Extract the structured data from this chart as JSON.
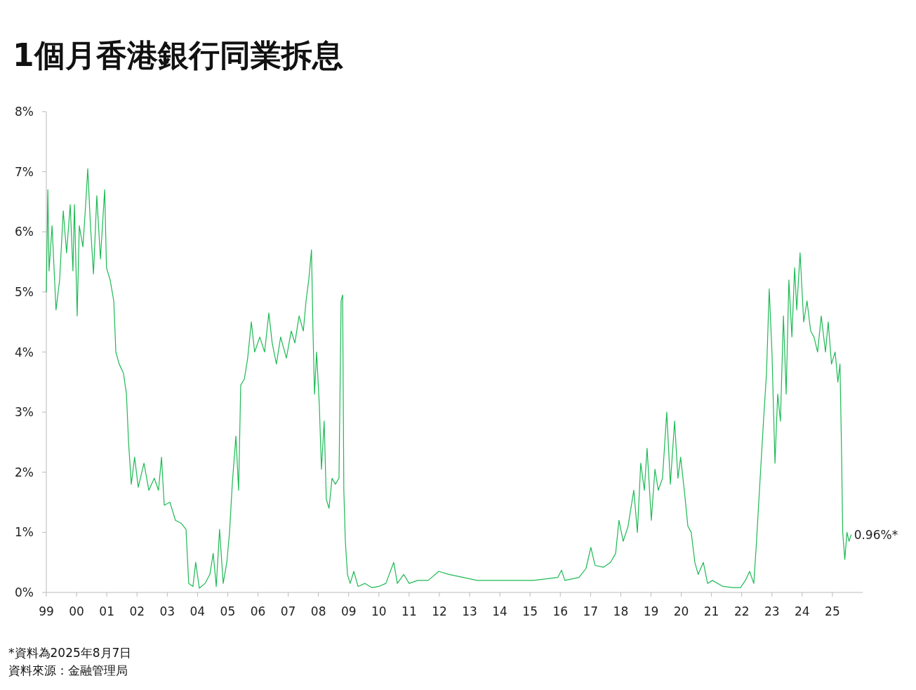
{
  "chart_data": {
    "type": "line",
    "title": "1個月香港銀行同業拆息",
    "x": [
      1999.0,
      1999.05,
      1999.09,
      1999.19,
      1999.32,
      1999.44,
      1999.56,
      1999.67,
      1999.79,
      1999.88,
      1999.93,
      2000.02,
      2000.09,
      2000.21,
      2000.3,
      2000.37,
      2000.46,
      2000.56,
      2000.67,
      2000.79,
      2000.93,
      2000.99,
      2001.11,
      2001.23,
      2001.3,
      2001.41,
      2001.55,
      2001.65,
      2001.72,
      2001.81,
      2001.92,
      2002.04,
      2002.23,
      2002.39,
      2002.57,
      2002.71,
      2002.81,
      2002.9,
      2003.09,
      2003.27,
      2003.46,
      2003.62,
      2003.71,
      2003.85,
      2003.94,
      2004.06,
      2004.25,
      2004.41,
      2004.52,
      2004.62,
      2004.73,
      2004.85,
      2004.97,
      2005.06,
      2005.15,
      2005.27,
      2005.36,
      2005.43,
      2005.55,
      2005.66,
      2005.78,
      2005.89,
      2006.06,
      2006.22,
      2006.36,
      2006.47,
      2006.61,
      2006.75,
      2006.94,
      2007.1,
      2007.22,
      2007.36,
      2007.5,
      2007.59,
      2007.68,
      2007.77,
      2007.82,
      2007.87,
      2007.94,
      2008.03,
      2008.1,
      2008.19,
      2008.26,
      2008.35,
      2008.45,
      2008.56,
      2008.68,
      2008.75,
      2008.8,
      2008.84,
      2008.89,
      2008.96,
      2009.05,
      2009.17,
      2009.31,
      2009.54,
      2009.77,
      2010.0,
      2010.23,
      2010.49,
      2010.61,
      2010.82,
      2011.0,
      2011.28,
      2011.63,
      2011.98,
      2012.32,
      2012.79,
      2013.25,
      2014.18,
      2015.11,
      2015.92,
      2016.04,
      2016.15,
      2016.62,
      2016.85,
      2017.01,
      2017.15,
      2017.43,
      2017.66,
      2017.83,
      2017.94,
      2018.08,
      2018.24,
      2018.43,
      2018.55,
      2018.66,
      2018.78,
      2018.87,
      2019.01,
      2019.13,
      2019.24,
      2019.38,
      2019.52,
      2019.64,
      2019.78,
      2019.89,
      2019.98,
      2020.1,
      2020.22,
      2020.33,
      2020.45,
      2020.56,
      2020.73,
      2020.87,
      2021.03,
      2021.38,
      2021.73,
      2021.96,
      2022.12,
      2022.26,
      2022.4,
      2022.49,
      2022.61,
      2022.72,
      2022.82,
      2022.91,
      2023.0,
      2023.1,
      2023.19,
      2023.28,
      2023.38,
      2023.47,
      2023.56,
      2023.66,
      2023.75,
      2023.82,
      2023.93,
      2024.05,
      2024.16,
      2024.28,
      2024.39,
      2024.51,
      2024.63,
      2024.77,
      2024.86,
      2024.97,
      2025.09,
      2025.18,
      2025.25,
      2025.3,
      2025.34,
      2025.41,
      2025.48,
      2025.55,
      2025.62
    ],
    "series": [
      {
        "color": "#1db954",
        "values": [
          5.0,
          6.7,
          5.35,
          6.1,
          4.7,
          5.2,
          6.35,
          5.65,
          6.45,
          5.35,
          6.45,
          4.6,
          6.1,
          5.75,
          6.45,
          7.05,
          6.1,
          5.3,
          6.6,
          5.55,
          6.7,
          5.4,
          5.2,
          4.85,
          4.0,
          3.8,
          3.65,
          3.3,
          2.5,
          1.8,
          2.25,
          1.75,
          2.15,
          1.7,
          1.9,
          1.7,
          2.25,
          1.45,
          1.5,
          1.2,
          1.15,
          1.05,
          0.15,
          0.1,
          0.5,
          0.07,
          0.15,
          0.3,
          0.65,
          0.1,
          1.05,
          0.15,
          0.5,
          1.0,
          1.8,
          2.6,
          1.7,
          3.45,
          3.55,
          3.9,
          4.5,
          4.0,
          4.25,
          4.0,
          4.65,
          4.15,
          3.8,
          4.25,
          3.9,
          4.35,
          4.15,
          4.6,
          4.35,
          4.85,
          5.2,
          5.7,
          4.35,
          3.3,
          4.0,
          3.1,
          2.05,
          2.85,
          1.55,
          1.4,
          1.9,
          1.8,
          1.9,
          4.85,
          4.95,
          1.7,
          0.85,
          0.3,
          0.15,
          0.35,
          0.1,
          0.15,
          0.08,
          0.1,
          0.15,
          0.5,
          0.15,
          0.3,
          0.15,
          0.2,
          0.2,
          0.35,
          0.3,
          0.25,
          0.2,
          0.2,
          0.2,
          0.25,
          0.37,
          0.2,
          0.25,
          0.4,
          0.75,
          0.45,
          0.42,
          0.5,
          0.65,
          1.2,
          0.85,
          1.1,
          1.7,
          1.0,
          2.15,
          1.7,
          2.4,
          1.2,
          2.05,
          1.7,
          1.9,
          3.0,
          1.8,
          2.85,
          1.9,
          2.25,
          1.7,
          1.1,
          1.0,
          0.5,
          0.3,
          0.5,
          0.15,
          0.2,
          0.1,
          0.08,
          0.08,
          0.2,
          0.35,
          0.15,
          0.85,
          1.9,
          2.85,
          3.65,
          5.05,
          4.0,
          2.15,
          3.3,
          2.85,
          4.6,
          3.3,
          5.2,
          4.25,
          5.4,
          4.7,
          5.65,
          4.5,
          4.85,
          4.35,
          4.25,
          4.0,
          4.6,
          4.0,
          4.5,
          3.8,
          4.0,
          3.5,
          3.8,
          2.4,
          1.0,
          0.55,
          1.0,
          0.85,
          0.96
        ]
      }
    ],
    "xlim": [
      1999,
      2026
    ],
    "xticks": [
      {
        "value": 1999,
        "label": "99"
      },
      {
        "value": 2000,
        "label": "00"
      },
      {
        "value": 2001,
        "label": "01"
      },
      {
        "value": 2002,
        "label": "02"
      },
      {
        "value": 2003,
        "label": "03"
      },
      {
        "value": 2004,
        "label": "04"
      },
      {
        "value": 2005,
        "label": "05"
      },
      {
        "value": 2006,
        "label": "06"
      },
      {
        "value": 2007,
        "label": "07"
      },
      {
        "value": 2008,
        "label": "08"
      },
      {
        "value": 2009,
        "label": "09"
      },
      {
        "value": 2010,
        "label": "10"
      },
      {
        "value": 2011,
        "label": "11"
      },
      {
        "value": 2012,
        "label": "12"
      },
      {
        "value": 2013,
        "label": "13"
      },
      {
        "value": 2014,
        "label": "14"
      },
      {
        "value": 2015,
        "label": "15"
      },
      {
        "value": 2016,
        "label": "16"
      },
      {
        "value": 2017,
        "label": "17"
      },
      {
        "value": 2018,
        "label": "18"
      },
      {
        "value": 2019,
        "label": "19"
      },
      {
        "value": 2020,
        "label": "20"
      },
      {
        "value": 2021,
        "label": "21"
      },
      {
        "value": 2022,
        "label": "22"
      },
      {
        "value": 2023,
        "label": "23"
      },
      {
        "value": 2024,
        "label": "24"
      },
      {
        "value": 2025,
        "label": "25"
      }
    ],
    "ylim": [
      0,
      8
    ],
    "yticks": [
      {
        "value": 0,
        "label": "0%"
      },
      {
        "value": 1,
        "label": "1%"
      },
      {
        "value": 2,
        "label": "2%"
      },
      {
        "value": 3,
        "label": "3%"
      },
      {
        "value": 4,
        "label": "4%"
      },
      {
        "value": 5,
        "label": "5%"
      },
      {
        "value": 6,
        "label": "6%"
      },
      {
        "value": 7,
        "label": "7%"
      },
      {
        "value": 8,
        "label": "8%"
      }
    ],
    "annotations": [
      {
        "text": "0.96%*",
        "x": 2025.62,
        "y": 0.96
      },
      "*資料為2025年8月7日",
      "資料來源：金融管理局"
    ]
  }
}
